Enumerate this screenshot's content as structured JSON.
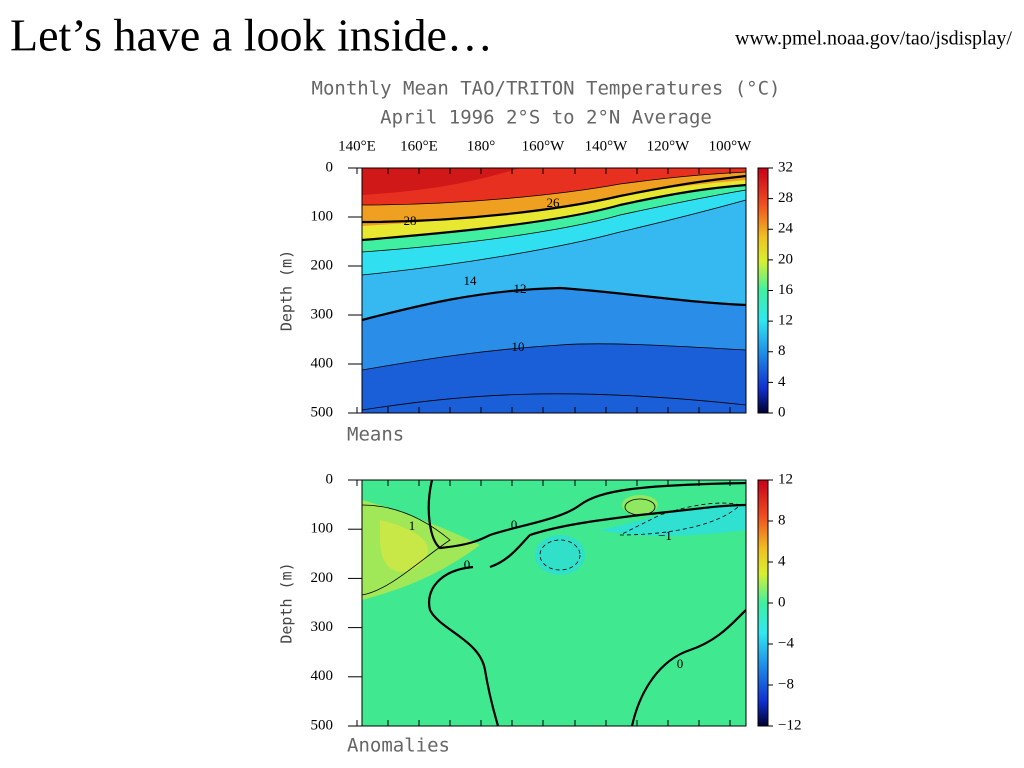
{
  "slide": {
    "title": "Let’s have a look inside…",
    "url": "www.pmel.noaa.gov/tao/jsdisplay/"
  },
  "figure": {
    "title_lines": [
      "Monthly Mean TAO/TRITON Temperatures (°C)",
      "April 1996   2°S to 2°N Average"
    ],
    "longitude_labels": [
      "140°E",
      "160°E",
      "180°",
      "160°W",
      "140°W",
      "120°W",
      "100°W"
    ],
    "panels": [
      {
        "label": "Means",
        "y_axis_label": "Depth (m)",
        "depth_ticks": [
          "0",
          "100",
          "200",
          "300",
          "400",
          "500"
        ],
        "colorbar_ticks": [
          "32",
          "28",
          "24",
          "20",
          "16",
          "12",
          "8",
          "4",
          "0"
        ],
        "contour_labels": [
          "28",
          "26",
          "14",
          "12",
          "10"
        ]
      },
      {
        "label": "Anomalies",
        "y_axis_label": "Depth (m)",
        "depth_ticks": [
          "0",
          "100",
          "200",
          "300",
          "400",
          "500"
        ],
        "colorbar_ticks": [
          "12",
          "8",
          "4",
          "0",
          "−4",
          "−8",
          "−12"
        ],
        "contour_labels": [
          "1",
          "0",
          "0",
          "−1",
          "0"
        ]
      }
    ]
  }
}
